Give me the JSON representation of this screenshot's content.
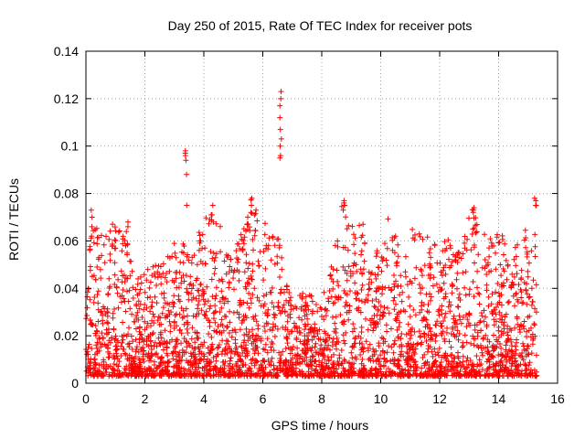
{
  "chart_data": {
    "type": "scatter",
    "title": "Day 250 of 2015, Rate Of TEC Index for receiver pots",
    "xlabel": "GPS time / hours",
    "ylabel": "ROTI / TECUs",
    "xlim": [
      0,
      16
    ],
    "ylim": [
      0,
      0.14
    ],
    "x_ticks": [
      0,
      2,
      4,
      6,
      8,
      10,
      12,
      14,
      16
    ],
    "x_tick_labels": [
      "0",
      "2",
      "4",
      "6",
      "8",
      "10",
      "12",
      "14",
      "16"
    ],
    "y_ticks": [
      0,
      0.02,
      0.04,
      0.06,
      0.08,
      0.1,
      0.12,
      0.14
    ],
    "y_tick_labels": [
      "0",
      "0.02",
      "0.04",
      "0.06",
      "0.08",
      "0.1",
      "0.12",
      "0.14"
    ],
    "grid": true,
    "marker": "plus",
    "color": "#ff0000",
    "data_x_range": [
      0,
      15.3
    ],
    "envelope": [
      {
        "x": 0.0,
        "y": 0.035
      },
      {
        "x": 0.1,
        "y": 0.06
      },
      {
        "x": 0.2,
        "y": 0.073
      },
      {
        "x": 0.6,
        "y": 0.06
      },
      {
        "x": 0.9,
        "y": 0.068
      },
      {
        "x": 1.4,
        "y": 0.068
      },
      {
        "x": 1.7,
        "y": 0.045
      },
      {
        "x": 2.3,
        "y": 0.05
      },
      {
        "x": 2.8,
        "y": 0.055
      },
      {
        "x": 3.1,
        "y": 0.065
      },
      {
        "x": 3.5,
        "y": 0.055
      },
      {
        "x": 4.2,
        "y": 0.075
      },
      {
        "x": 4.8,
        "y": 0.06
      },
      {
        "x": 5.2,
        "y": 0.06
      },
      {
        "x": 5.6,
        "y": 0.078
      },
      {
        "x": 6.0,
        "y": 0.068
      },
      {
        "x": 6.5,
        "y": 0.065
      },
      {
        "x": 7.0,
        "y": 0.035
      },
      {
        "x": 7.5,
        "y": 0.04
      },
      {
        "x": 7.8,
        "y": 0.035
      },
      {
        "x": 8.2,
        "y": 0.04
      },
      {
        "x": 8.7,
        "y": 0.077
      },
      {
        "x": 9.3,
        "y": 0.07
      },
      {
        "x": 9.8,
        "y": 0.06
      },
      {
        "x": 10.3,
        "y": 0.072
      },
      {
        "x": 10.7,
        "y": 0.055
      },
      {
        "x": 11.2,
        "y": 0.069
      },
      {
        "x": 11.7,
        "y": 0.06
      },
      {
        "x": 12.2,
        "y": 0.065
      },
      {
        "x": 12.6,
        "y": 0.055
      },
      {
        "x": 13.1,
        "y": 0.074
      },
      {
        "x": 13.5,
        "y": 0.068
      },
      {
        "x": 14.0,
        "y": 0.063
      },
      {
        "x": 14.5,
        "y": 0.06
      },
      {
        "x": 15.0,
        "y": 0.068
      },
      {
        "x": 15.3,
        "y": 0.078
      }
    ],
    "spikes": [
      {
        "x": 0.18,
        "values": [
          0.062,
          0.066,
          0.07,
          0.073
        ]
      },
      {
        "x": 1.4,
        "values": [
          0.064,
          0.066,
          0.068
        ]
      },
      {
        "x": 3.4,
        "values": [
          0.075,
          0.088,
          0.094,
          0.096,
          0.097,
          0.098
        ]
      },
      {
        "x": 4.3,
        "values": [
          0.068,
          0.071,
          0.075
        ]
      },
      {
        "x": 5.6,
        "values": [
          0.072,
          0.075,
          0.078
        ]
      },
      {
        "x": 6.6,
        "values": [
          0.095,
          0.096,
          0.1,
          0.103,
          0.107,
          0.112,
          0.117,
          0.12,
          0.123
        ]
      },
      {
        "x": 8.75,
        "values": [
          0.075,
          0.076,
          0.077
        ]
      },
      {
        "x": 13.15,
        "values": [
          0.072,
          0.073,
          0.074
        ]
      },
      {
        "x": 15.25,
        "values": [
          0.075,
          0.077,
          0.078
        ]
      }
    ]
  }
}
